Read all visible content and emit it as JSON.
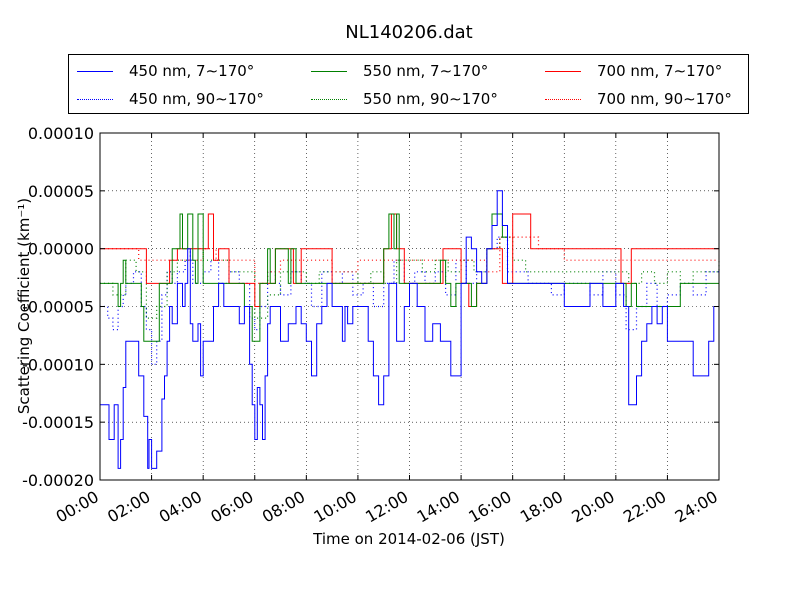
{
  "chart_data": {
    "type": "line",
    "title": "NL140206.dat",
    "xlabel": "Time on 2014-02-06 (JST)",
    "ylabel": "Scattering Coefficient (km⁻¹)",
    "xlim": [
      0,
      24
    ],
    "ylim": [
      -0.0002,
      0.0001
    ],
    "x_ticks": [
      0,
      2,
      4,
      6,
      8,
      10,
      12,
      14,
      16,
      18,
      20,
      22,
      24
    ],
    "x_tick_labels": [
      "00:00",
      "02:00",
      "04:00",
      "06:00",
      "08:00",
      "10:00",
      "12:00",
      "14:00",
      "16:00",
      "18:00",
      "20:00",
      "22:00",
      "24:00"
    ],
    "y_ticks": [
      0.0001,
      5e-05,
      0.0,
      -5e-05,
      -0.0001,
      -0.00015,
      -0.0002
    ],
    "y_tick_labels": [
      "0.00010",
      "0.00005",
      "0.00000",
      "-0.00005",
      "-0.00010",
      "-0.00015",
      "-0.00020"
    ],
    "grid": true,
    "legend_position": "top",
    "series": [
      {
        "name": "450 nm, 7∼170°",
        "color": "#0000ff",
        "style": "solid",
        "x": [
          0.0,
          0.3,
          0.35,
          0.5,
          0.55,
          0.7,
          0.8,
          0.9,
          1.0,
          1.5,
          1.6,
          1.7,
          1.8,
          1.85,
          1.9,
          2.0,
          2.2,
          2.4,
          2.5,
          2.6,
          2.7,
          2.8,
          3.0,
          3.2,
          3.3,
          3.4,
          3.5,
          3.6,
          3.8,
          3.9,
          4.0,
          4.2,
          4.4,
          4.5,
          4.6,
          4.8,
          5.2,
          5.4,
          5.6,
          5.8,
          5.9,
          6.0,
          6.1,
          6.2,
          6.3,
          6.4,
          6.5,
          6.6,
          7.0,
          7.3,
          7.6,
          7.8,
          8.0,
          8.2,
          8.4,
          8.6,
          8.8,
          9.0,
          9.2,
          9.4,
          9.5,
          9.6,
          9.8,
          10.0,
          10.4,
          10.6,
          10.8,
          11.0,
          11.2,
          11.5,
          11.8,
          12.0,
          12.3,
          12.6,
          12.9,
          13.2,
          13.6,
          14.0,
          14.2,
          14.4,
          14.6,
          14.8,
          15.0,
          15.2,
          15.4,
          15.6,
          15.8,
          16.0,
          16.3,
          16.6,
          17.0,
          17.5,
          18.0,
          18.5,
          19.0,
          19.5,
          20.0,
          20.3,
          20.5,
          20.6,
          20.8,
          21.0,
          21.2,
          21.4,
          21.6,
          21.8,
          22.0,
          22.5,
          23.0,
          23.4,
          23.6,
          23.8,
          24.0
        ],
        "y": [
          -0.000135,
          -0.000135,
          -0.000165,
          -0.000165,
          -0.000135,
          -0.00019,
          -0.000165,
          -0.00012,
          -8e-05,
          -0.00011,
          -0.00011,
          -0.000145,
          -0.000145,
          -0.00019,
          -0.000165,
          -0.00019,
          -0.000175,
          -0.00013,
          -0.00011,
          -8e-05,
          -5e-05,
          -6.5e-05,
          -3e-05,
          -5e-05,
          -3e-05,
          0.0,
          -6.5e-05,
          -8e-05,
          -6.5e-05,
          -0.00011,
          -8e-05,
          -8e-05,
          -5e-05,
          -5e-05,
          -3e-05,
          -5e-05,
          -5e-05,
          -6.5e-05,
          -5e-05,
          -0.0001,
          -0.000135,
          -0.000165,
          -0.00012,
          -0.000135,
          -0.000165,
          -0.00011,
          -6.5e-05,
          -5e-05,
          -8e-05,
          -6.5e-05,
          -5e-05,
          -6.5e-05,
          -8e-05,
          -0.00011,
          -6.5e-05,
          -5e-05,
          -3e-05,
          -5e-05,
          -5e-05,
          -8e-05,
          -5e-05,
          -6.5e-05,
          -5e-05,
          -5e-05,
          -8e-05,
          -0.00011,
          -0.000135,
          -0.00011,
          -3e-05,
          -8e-05,
          -5e-05,
          -3e-05,
          -5e-05,
          -8e-05,
          -6.5e-05,
          -8e-05,
          -0.00011,
          -3e-05,
          1e-05,
          0.0,
          -2e-05,
          -3e-05,
          0.0,
          2e-05,
          5e-05,
          2e-05,
          -3e-05,
          -3e-05,
          -3e-05,
          -3e-05,
          -3e-05,
          -3e-05,
          -5e-05,
          -5e-05,
          -3e-05,
          -5e-05,
          -3e-05,
          -5e-05,
          -0.000135,
          -0.000135,
          -0.00011,
          -8e-05,
          -6.5e-05,
          -5e-05,
          -6.5e-05,
          -5e-05,
          -8e-05,
          -8e-05,
          -0.00011,
          -0.00011,
          -8e-05,
          -5e-05,
          -5e-05
        ]
      },
      {
        "name": "450 nm, 90∼170°",
        "color": "#0000ff",
        "style": "dotted",
        "x": [
          0.0,
          0.3,
          0.5,
          0.7,
          0.9,
          1.0,
          1.3,
          1.6,
          1.8,
          2.0,
          2.2,
          2.4,
          2.6,
          2.8,
          3.0,
          3.3,
          3.6,
          4.0,
          4.3,
          4.6,
          5.0,
          5.4,
          5.8,
          6.0,
          6.2,
          6.5,
          6.8,
          7.0,
          7.4,
          7.8,
          8.2,
          8.6,
          9.0,
          9.4,
          9.8,
          10.2,
          10.6,
          11.0,
          11.4,
          11.8,
          12.2,
          12.6,
          13.0,
          13.4,
          13.8,
          14.2,
          14.6,
          15.0,
          15.4,
          15.8,
          16.2,
          16.6,
          17.0,
          17.5,
          18.0,
          18.5,
          19.0,
          19.5,
          20.0,
          20.4,
          20.8,
          21.2,
          21.6,
          22.0,
          22.5,
          23.0,
          23.5,
          24.0
        ],
        "y": [
          -5e-05,
          -6e-05,
          -7e-05,
          -5e-05,
          -4e-05,
          -3e-05,
          -2e-05,
          -5e-05,
          -7e-05,
          -0.0001,
          -8e-05,
          -4e-05,
          -2e-05,
          -3e-05,
          -2e-05,
          -1e-05,
          -3e-05,
          -2e-05,
          -1e-05,
          -3e-05,
          -2e-05,
          -3e-05,
          -6e-05,
          -7e-05,
          -5e-05,
          -2e-05,
          -3e-05,
          -4e-05,
          -2e-05,
          -3e-05,
          -5e-05,
          -2e-05,
          -3e-05,
          -2e-05,
          -4e-05,
          -3e-05,
          -5e-05,
          -3e-05,
          -1e-05,
          -3e-05,
          -2e-05,
          -3e-05,
          -2e-05,
          -4e-05,
          -1e-05,
          -3e-05,
          -2e-05,
          0.0,
          1e-05,
          -2e-05,
          -2e-05,
          -3e-05,
          -3e-05,
          -4e-05,
          -3e-05,
          -3e-05,
          -4e-05,
          -2e-05,
          -4e-05,
          -7e-05,
          -5e-05,
          -3e-05,
          -5e-05,
          -4e-05,
          -3e-05,
          -4e-05,
          -2e-05,
          -2e-05
        ]
      },
      {
        "name": "550 nm, 7∼170°",
        "color": "#008000",
        "style": "solid",
        "x": [
          0.0,
          0.6,
          0.7,
          0.8,
          0.9,
          1.0,
          1.5,
          1.6,
          1.7,
          1.8,
          1.9,
          2.0,
          2.3,
          2.5,
          2.6,
          2.8,
          3.0,
          3.1,
          3.2,
          3.4,
          3.6,
          3.7,
          3.8,
          4.0,
          4.2,
          4.4,
          4.5,
          5.0,
          5.5,
          5.6,
          5.9,
          6.0,
          6.1,
          6.2,
          6.5,
          6.6,
          6.8,
          7.0,
          7.3,
          7.4,
          7.6,
          7.8,
          8.0,
          8.5,
          9.0,
          9.5,
          10.0,
          10.5,
          11.0,
          11.2,
          11.4,
          11.5,
          11.6,
          11.8,
          12.0,
          12.5,
          13.0,
          13.2,
          13.4,
          13.6,
          13.8,
          14.0,
          14.2,
          14.4,
          14.6,
          14.8,
          15.0,
          15.2,
          15.4,
          15.6,
          15.8,
          16.0,
          17.0,
          18.0,
          19.0,
          20.0,
          20.2,
          20.4,
          20.6,
          20.8,
          21.0,
          21.5,
          22.0,
          22.5,
          23.0,
          23.5,
          24.0
        ],
        "y": [
          -3e-05,
          -3e-05,
          -5e-05,
          -3e-05,
          -1e-05,
          -3e-05,
          -3e-05,
          -5e-05,
          -8e-05,
          -8e-05,
          -8e-05,
          -8e-05,
          -3e-05,
          -3e-05,
          -3e-05,
          0.0,
          0.0,
          3e-05,
          0.0,
          3e-05,
          -1e-05,
          -3e-05,
          3e-05,
          -3e-05,
          -3e-05,
          -3e-05,
          -3e-05,
          -3e-05,
          -3e-05,
          -5e-05,
          -8e-05,
          -8e-05,
          -8e-05,
          -3e-05,
          0.0,
          -3e-05,
          0.0,
          0.0,
          -3e-05,
          0.0,
          -3e-05,
          -3e-05,
          -3e-05,
          -3e-05,
          -3e-05,
          -3e-05,
          -3e-05,
          -3e-05,
          0.0,
          3e-05,
          0.0,
          3e-05,
          -3e-05,
          -3e-05,
          -3e-05,
          -3e-05,
          -3e-05,
          -1e-05,
          -3e-05,
          -5e-05,
          -3e-05,
          -3e-05,
          -3e-05,
          -5e-05,
          -3e-05,
          -3e-05,
          0.0,
          3e-05,
          3e-05,
          1e-05,
          -3e-05,
          -3e-05,
          -3e-05,
          -3e-05,
          -3e-05,
          -3e-05,
          -3e-05,
          -5e-05,
          -3e-05,
          -5e-05,
          -5e-05,
          -5e-05,
          -5e-05,
          -3e-05,
          -3e-05,
          -3e-05,
          -3e-05
        ]
      },
      {
        "name": "550 nm, 90∼170°",
        "color": "#008000",
        "style": "dotted",
        "x": [
          0.0,
          0.5,
          1.0,
          1.4,
          1.8,
          2.2,
          2.6,
          3.0,
          3.5,
          4.0,
          4.5,
          5.0,
          5.5,
          6.0,
          6.5,
          7.0,
          7.5,
          8.0,
          8.5,
          9.0,
          9.5,
          10.0,
          10.5,
          11.0,
          11.5,
          12.0,
          12.5,
          13.0,
          13.5,
          14.0,
          14.5,
          15.0,
          15.5,
          16.0,
          16.5,
          17.0,
          18.0,
          19.0,
          20.0,
          20.5,
          21.0,
          21.5,
          22.0,
          22.5,
          23.0,
          23.5,
          24.0
        ],
        "y": [
          -3e-05,
          -4e-05,
          -1e-05,
          -2e-05,
          -6e-05,
          -5e-05,
          -2e-05,
          -1e-05,
          0.0,
          -1e-05,
          -1e-05,
          -2e-05,
          -2e-05,
          -6e-05,
          -4e-05,
          -2e-05,
          -2e-05,
          -3e-05,
          -2e-05,
          -2e-05,
          -2e-05,
          -3e-05,
          -2e-05,
          -3e-05,
          -1e-05,
          -1e-05,
          -2e-05,
          -1e-05,
          -2e-05,
          -1e-05,
          -2e-05,
          0.0,
          1e-05,
          -1e-05,
          -2e-05,
          -2e-05,
          -2e-05,
          -2e-05,
          -2e-05,
          -3e-05,
          -2e-05,
          -3e-05,
          -2e-05,
          -3e-05,
          -2e-05,
          -2e-05,
          -1e-05
        ]
      },
      {
        "name": "700 nm, 7∼170°",
        "color": "#ff0000",
        "style": "solid",
        "x": [
          0.0,
          1.5,
          1.8,
          2.5,
          2.7,
          3.0,
          4.0,
          4.2,
          4.4,
          4.6,
          5.0,
          5.5,
          5.8,
          6.0,
          6.2,
          6.5,
          6.8,
          7.0,
          7.5,
          7.8,
          8.5,
          9.0,
          9.5,
          10.0,
          10.5,
          11.0,
          11.3,
          11.5,
          11.8,
          12.0,
          12.5,
          13.0,
          13.3,
          13.6,
          14.0,
          14.3,
          14.6,
          15.0,
          15.4,
          15.6,
          16.0,
          16.5,
          16.7,
          17.0,
          18.0,
          19.0,
          20.0,
          20.2,
          20.4,
          20.6,
          20.8,
          21.0,
          22.0,
          23.0,
          24.0
        ],
        "y": [
          0.0,
          0.0,
          -3e-05,
          -3e-05,
          -1e-05,
          0.0,
          0.0,
          3e-05,
          -1e-05,
          0.0,
          -3e-05,
          -3e-05,
          -3e-05,
          -5e-05,
          -3e-05,
          -3e-05,
          0.0,
          0.0,
          -3e-05,
          0.0,
          0.0,
          -3e-05,
          -3e-05,
          -3e-05,
          -3e-05,
          0.0,
          3e-05,
          0.0,
          -3e-05,
          -3e-05,
          -3e-05,
          -3e-05,
          0.0,
          0.0,
          -3e-05,
          -5e-05,
          -3e-05,
          0.0,
          0.0,
          -3e-05,
          3e-05,
          3e-05,
          0.0,
          0.0,
          0.0,
          0.0,
          0.0,
          -3e-05,
          -3e-05,
          0.0,
          0.0,
          0.0,
          0.0,
          0.0,
          0.0
        ]
      },
      {
        "name": "700 nm, 90∼170°",
        "color": "#ff0000",
        "style": "dotted",
        "x": [
          0.0,
          1.5,
          2.0,
          3.0,
          4.0,
          4.5,
          5.0,
          5.5,
          6.0,
          6.5,
          7.0,
          8.0,
          9.0,
          10.0,
          11.0,
          12.0,
          13.0,
          14.0,
          15.0,
          15.5,
          16.0,
          17.0,
          18.0,
          19.0,
          20.0,
          21.0,
          22.0,
          23.0,
          24.0
        ],
        "y": [
          0.0,
          -1e-05,
          -1e-05,
          -1e-05,
          0.0,
          -1e-05,
          -1e-05,
          -1e-05,
          -3e-05,
          -2e-05,
          -1e-05,
          -1e-05,
          -2e-05,
          -1e-05,
          -1e-05,
          -1e-05,
          -1e-05,
          -1e-05,
          -2e-05,
          1e-05,
          1e-05,
          0.0,
          -1e-05,
          -1e-05,
          -1e-05,
          -1e-05,
          -1e-05,
          -1e-05,
          -1e-05
        ]
      }
    ]
  }
}
